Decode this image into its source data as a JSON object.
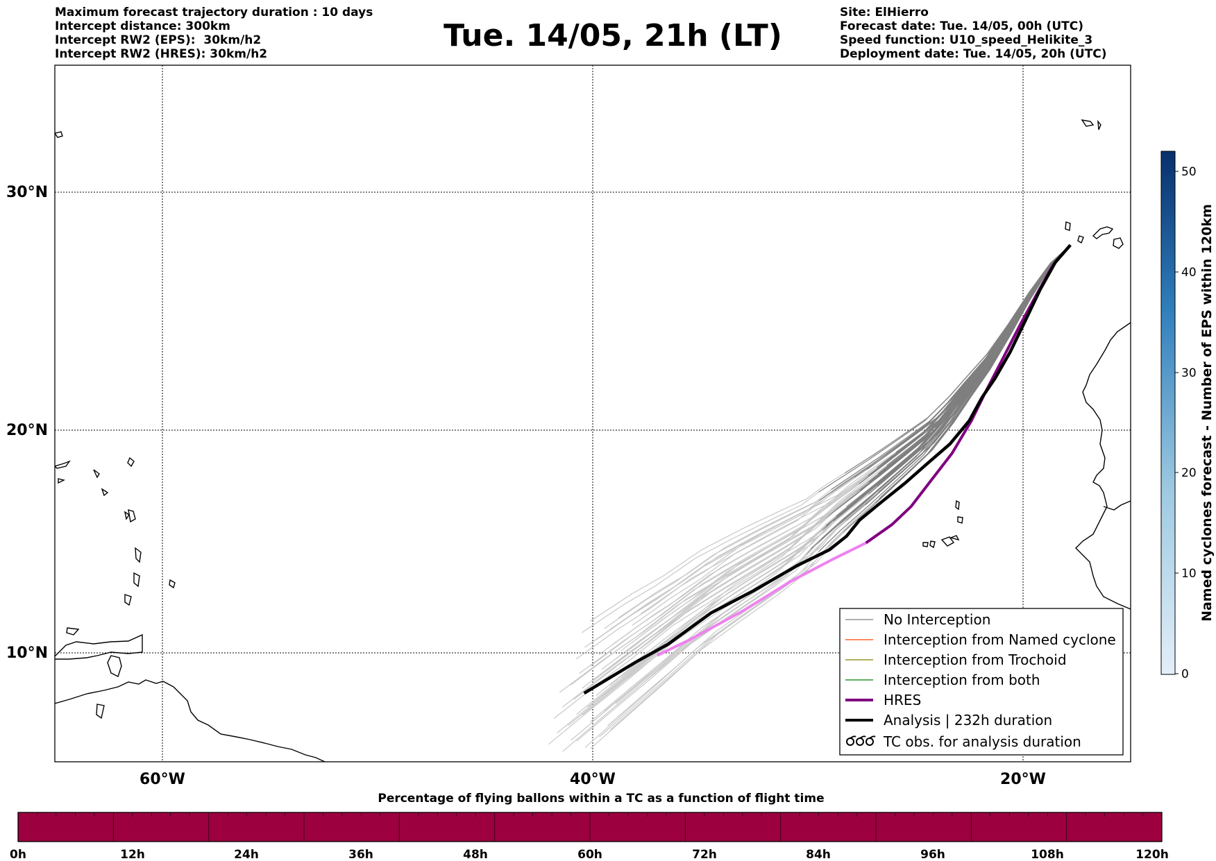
{
  "header": {
    "left": [
      "Maximum forecast trajectory duration : 10 days",
      "Intercept distance: 300km",
      "Intercept RW2 (EPS):  30km/h2",
      "Intercept RW2 (HRES): 30km/h2"
    ],
    "title": "Tue. 14/05, 21h (LT)",
    "right": [
      "Site: ElHierro",
      "Forecast date: Tue. 14/05, 00h (UTC)",
      "Speed function: U10_speed_Helikite_3",
      "Deployment date: Tue. 14/05, 20h (UTC)"
    ]
  },
  "map": {
    "lat_ticks": [
      "30°N",
      "20°N",
      "10°N"
    ],
    "lon_ticks": [
      "60°W",
      "40°W",
      "20°W"
    ],
    "lon_range": [
      -65,
      -15
    ],
    "lat_range": [
      5.3,
      34.7
    ],
    "grid": true
  },
  "legend": {
    "placement": "lower-right",
    "items": [
      {
        "label": "No Interception",
        "color": "#808080",
        "kind": "line-thin"
      },
      {
        "label": "Interception from Named cyclone",
        "color": "#ff4500",
        "kind": "line-thin"
      },
      {
        "label": "Interception from Trochoid",
        "color": "#808000",
        "kind": "line-thin"
      },
      {
        "label": "Interception from both",
        "color": "#008000",
        "kind": "line-thin"
      },
      {
        "label": "HRES",
        "color": "#800080",
        "kind": "line-thick"
      },
      {
        "label": "Analysis | 232h duration",
        "color": "#000000",
        "kind": "line-thick"
      },
      {
        "label": "TC obs. for analysis duration",
        "color": "#000000",
        "kind": "cyclone-symbols"
      }
    ]
  },
  "colorbar_right": {
    "label": "Named cyclones forecast - Number of EPS within 120km",
    "ticks": [
      "0",
      "10",
      "20",
      "30",
      "40",
      "50"
    ],
    "range": [
      0,
      52
    ],
    "color_low": "#e3eef9",
    "color_high": "#08306b"
  },
  "colorbar_bottom": {
    "label": "Percentage of flying ballons within a TC as a function of flight time",
    "ticks": [
      "0h",
      "12h",
      "24h",
      "36h",
      "48h",
      "60h",
      "72h",
      "84h",
      "96h",
      "108h",
      "120h"
    ],
    "fill_color": "#9c003f",
    "segments": 60
  },
  "chart_data": {
    "type": "line",
    "analysis_track": [
      [
        -17.8,
        27.7
      ],
      [
        -18.5,
        27.0
      ],
      [
        -19.2,
        25.9
      ],
      [
        -19.9,
        24.6
      ],
      [
        -20.6,
        23.3
      ],
      [
        -21.3,
        22.2
      ],
      [
        -21.9,
        21.4
      ],
      [
        -22.5,
        20.4
      ],
      [
        -23.4,
        19.4
      ],
      [
        -24.4,
        18.6
      ],
      [
        -25.5,
        17.7
      ],
      [
        -26.7,
        16.8
      ],
      [
        -27.6,
        16.1
      ],
      [
        -28.2,
        15.4
      ],
      [
        -29.0,
        14.8
      ],
      [
        -30.5,
        14.1
      ],
      [
        -32.5,
        13.0
      ],
      [
        -34.5,
        12.0
      ],
      [
        -36.5,
        10.6
      ],
      [
        -38.0,
        9.8
      ],
      [
        -40.4,
        8.4
      ]
    ],
    "hres_track": [
      [
        -17.8,
        27.7
      ],
      [
        -18.6,
        26.9
      ],
      [
        -19.3,
        25.8
      ],
      [
        -20.1,
        24.5
      ],
      [
        -20.9,
        23.1
      ],
      [
        -21.7,
        21.7
      ],
      [
        -22.4,
        20.4
      ],
      [
        -23.3,
        19.0
      ],
      [
        -24.3,
        17.8
      ],
      [
        -25.2,
        16.7
      ],
      [
        -26.1,
        15.9
      ],
      [
        -27.3,
        15.1
      ],
      [
        -28.8,
        14.4
      ],
      [
        -30.8,
        13.4
      ],
      [
        -33.0,
        12.1
      ],
      [
        -35.5,
        10.8
      ],
      [
        -37.0,
        10.1
      ]
    ]
  }
}
